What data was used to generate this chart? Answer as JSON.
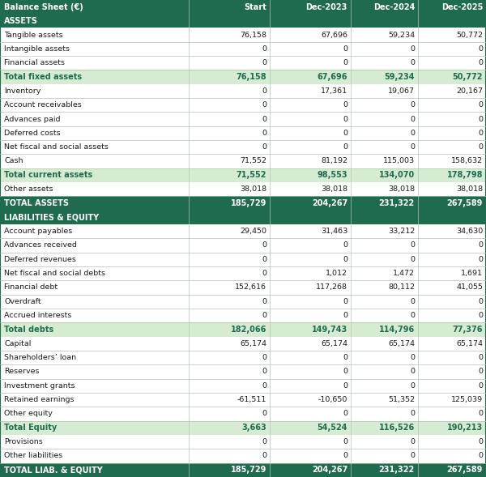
{
  "columns": [
    "Balance Sheet (€)",
    "Start",
    "Dec-2023",
    "Dec-2024",
    "Dec-2025"
  ],
  "header_bg": "#1f6b4e",
  "header_fg": "#ffffff",
  "section_bg": "#1f6b4e",
  "section_fg": "#ffffff",
  "subtotal_bg": "#d6ecd2",
  "subtotal_fg": "#1f6b4e",
  "total_bg": "#1f6b4e",
  "total_fg": "#ffffff",
  "normal_bg": "#ffffff",
  "normal_fg": "#1a1a1a",
  "grid_color": "#b0c4b0",
  "rows": [
    {
      "label": "ASSETS",
      "values": [
        "",
        "",
        "",
        ""
      ],
      "type": "section"
    },
    {
      "label": "Tangible assets",
      "values": [
        "76,158",
        "67,696",
        "59,234",
        "50,772"
      ],
      "type": "normal"
    },
    {
      "label": "Intangible assets",
      "values": [
        "0",
        "0",
        "0",
        "0"
      ],
      "type": "normal"
    },
    {
      "label": "Financial assets",
      "values": [
        "0",
        "0",
        "0",
        "0"
      ],
      "type": "normal"
    },
    {
      "label": "Total fixed assets",
      "values": [
        "76,158",
        "67,696",
        "59,234",
        "50,772"
      ],
      "type": "subtotal"
    },
    {
      "label": "Inventory",
      "values": [
        "0",
        "17,361",
        "19,067",
        "20,167"
      ],
      "type": "normal"
    },
    {
      "label": "Account receivables",
      "values": [
        "0",
        "0",
        "0",
        "0"
      ],
      "type": "normal"
    },
    {
      "label": "Advances paid",
      "values": [
        "0",
        "0",
        "0",
        "0"
      ],
      "type": "normal"
    },
    {
      "label": "Deferred costs",
      "values": [
        "0",
        "0",
        "0",
        "0"
      ],
      "type": "normal"
    },
    {
      "label": "Net fiscal and social assets",
      "values": [
        "0",
        "0",
        "0",
        "0"
      ],
      "type": "normal"
    },
    {
      "label": "Cash",
      "values": [
        "71,552",
        "81,192",
        "115,003",
        "158,632"
      ],
      "type": "normal"
    },
    {
      "label": "Total current assets",
      "values": [
        "71,552",
        "98,553",
        "134,070",
        "178,798"
      ],
      "type": "subtotal"
    },
    {
      "label": "Other assets",
      "values": [
        "38,018",
        "38,018",
        "38,018",
        "38,018"
      ],
      "type": "normal"
    },
    {
      "label": "TOTAL ASSETS",
      "values": [
        "185,729",
        "204,267",
        "231,322",
        "267,589"
      ],
      "type": "total"
    },
    {
      "label": "LIABILITIES & EQUITY",
      "values": [
        "",
        "",
        "",
        ""
      ],
      "type": "section"
    },
    {
      "label": "Account payables",
      "values": [
        "29,450",
        "31,463",
        "33,212",
        "34,630"
      ],
      "type": "normal"
    },
    {
      "label": "Advances received",
      "values": [
        "0",
        "0",
        "0",
        "0"
      ],
      "type": "normal"
    },
    {
      "label": "Deferred revenues",
      "values": [
        "0",
        "0",
        "0",
        "0"
      ],
      "type": "normal"
    },
    {
      "label": "Net fiscal and social debts",
      "values": [
        "0",
        "1,012",
        "1,472",
        "1,691"
      ],
      "type": "normal"
    },
    {
      "label": "Financial debt",
      "values": [
        "152,616",
        "117,268",
        "80,112",
        "41,055"
      ],
      "type": "normal"
    },
    {
      "label": "Overdraft",
      "values": [
        "0",
        "0",
        "0",
        "0"
      ],
      "type": "normal"
    },
    {
      "label": "Accrued interests",
      "values": [
        "0",
        "0",
        "0",
        "0"
      ],
      "type": "normal"
    },
    {
      "label": "Total debts",
      "values": [
        "182,066",
        "149,743",
        "114,796",
        "77,376"
      ],
      "type": "subtotal"
    },
    {
      "label": "Capital",
      "values": [
        "65,174",
        "65,174",
        "65,174",
        "65,174"
      ],
      "type": "normal"
    },
    {
      "label": "Shareholders’ loan",
      "values": [
        "0",
        "0",
        "0",
        "0"
      ],
      "type": "normal"
    },
    {
      "label": "Reserves",
      "values": [
        "0",
        "0",
        "0",
        "0"
      ],
      "type": "normal"
    },
    {
      "label": "Investment grants",
      "values": [
        "0",
        "0",
        "0",
        "0"
      ],
      "type": "normal"
    },
    {
      "label": "Retained earnings",
      "values": [
        "-61,511",
        "-10,650",
        "51,352",
        "125,039"
      ],
      "type": "normal"
    },
    {
      "label": "Other equity",
      "values": [
        "0",
        "0",
        "0",
        "0"
      ],
      "type": "normal"
    },
    {
      "label": "Total Equity",
      "values": [
        "3,663",
        "54,524",
        "116,526",
        "190,213"
      ],
      "type": "subtotal"
    },
    {
      "label": "Provisions",
      "values": [
        "0",
        "0",
        "0",
        "0"
      ],
      "type": "normal"
    },
    {
      "label": "Other liabilities",
      "values": [
        "0",
        "0",
        "0",
        "0"
      ],
      "type": "normal"
    },
    {
      "label": "TOTAL LIAB. & EQUITY",
      "values": [
        "185,729",
        "204,267",
        "231,322",
        "267,589"
      ],
      "type": "total"
    }
  ]
}
